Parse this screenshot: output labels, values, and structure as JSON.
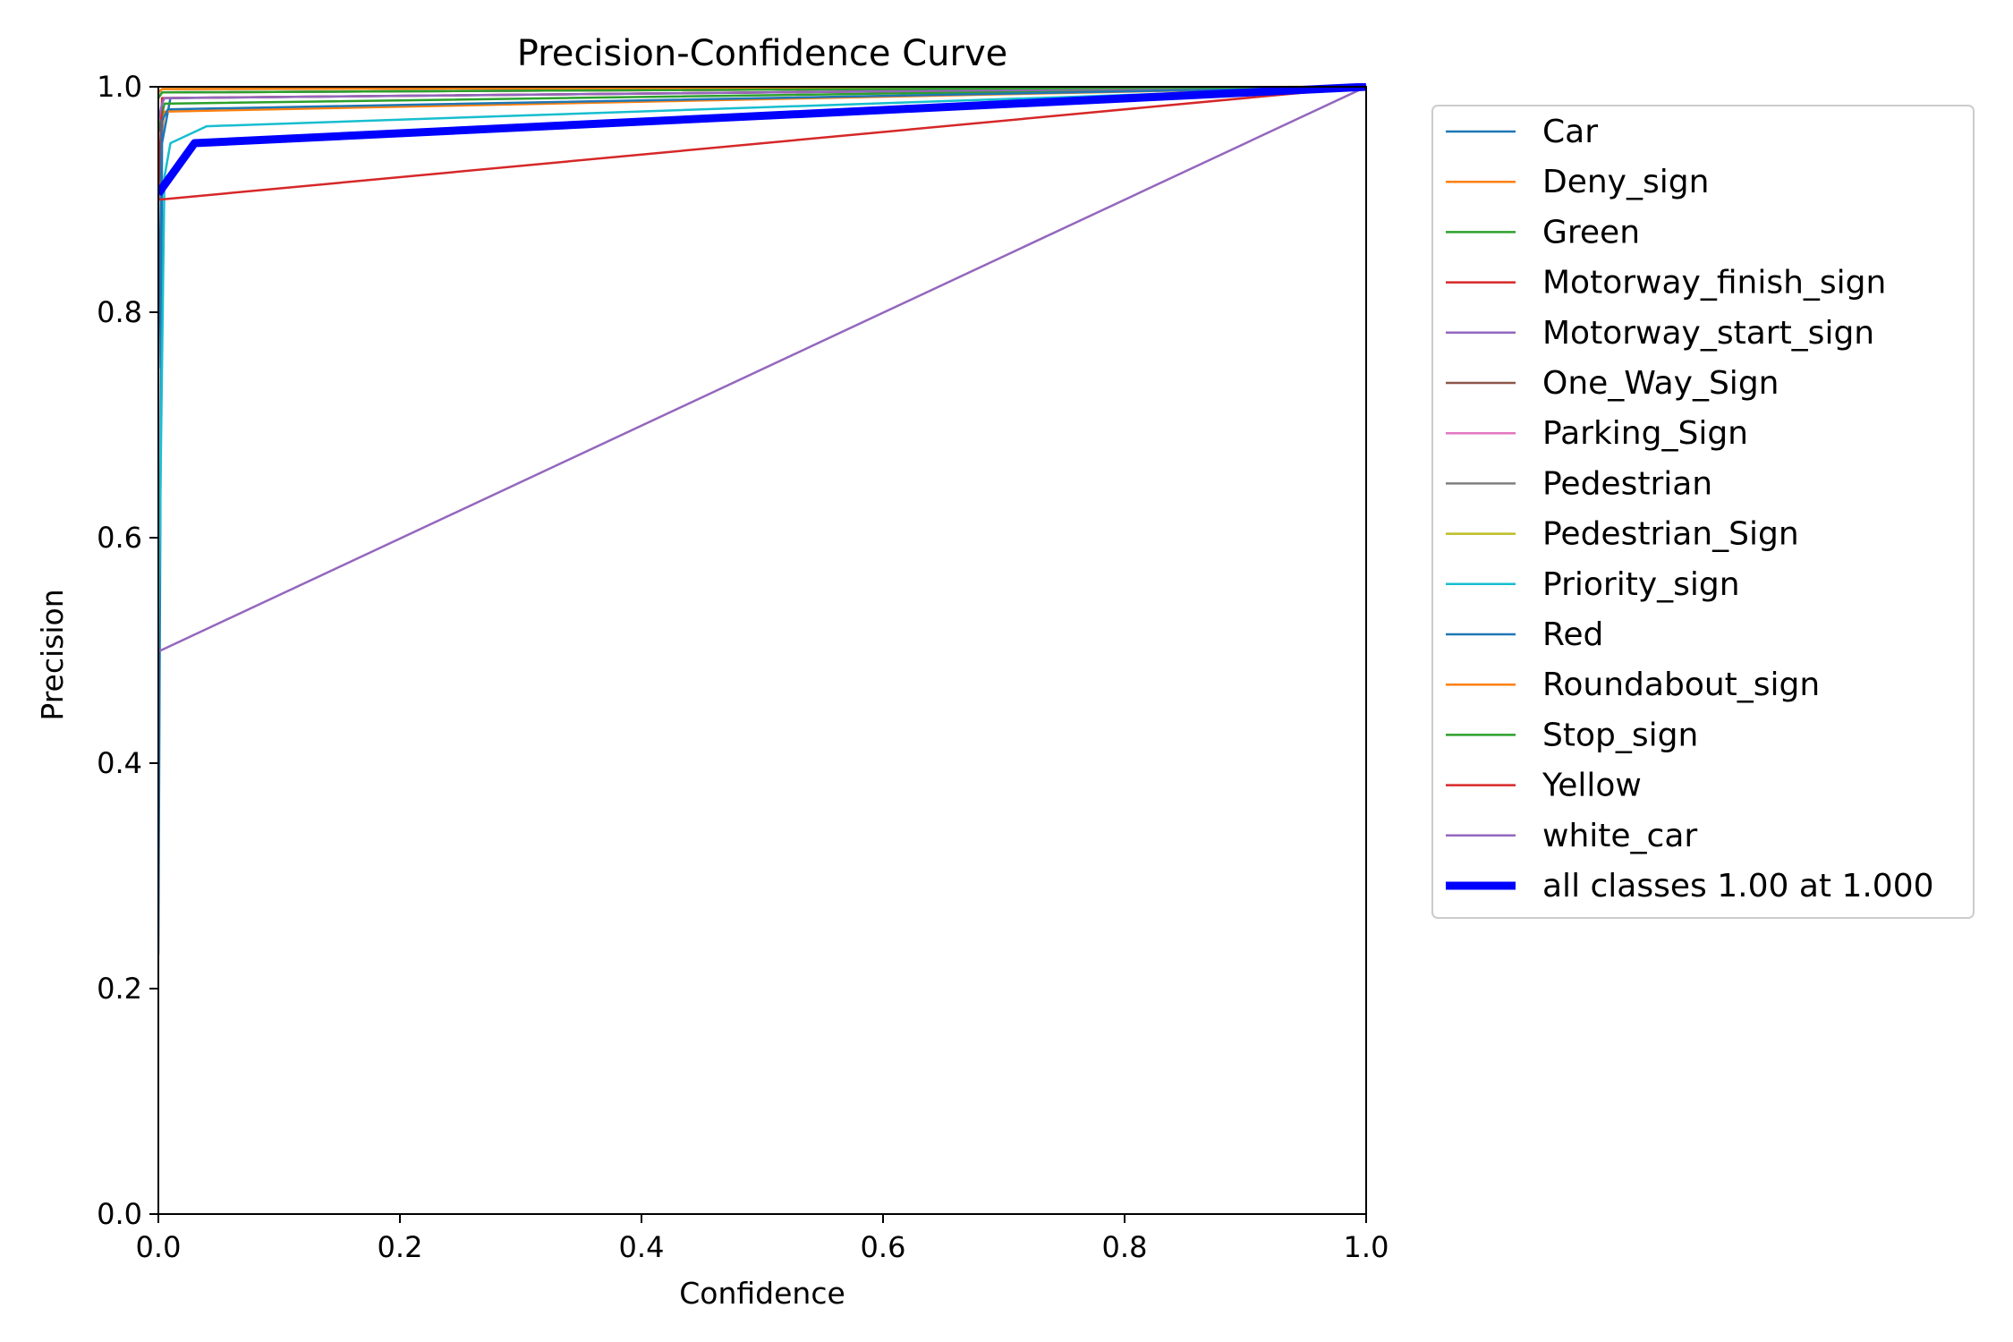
{
  "chart_data": {
    "type": "line",
    "title": "Precision-Confidence Curve",
    "xlabel": "Confidence",
    "ylabel": "Precision",
    "xlim": [
      0,
      1
    ],
    "ylim": [
      0,
      1
    ],
    "xticks": [
      "0.0",
      "0.2",
      "0.4",
      "0.6",
      "0.8",
      "1.0"
    ],
    "yticks": [
      "0.0",
      "0.2",
      "0.4",
      "0.6",
      "0.8",
      "1.0"
    ],
    "grid": false,
    "legend_position": "outside-right",
    "series": [
      {
        "name": "Car",
        "color": "#1f77b4",
        "x": [
          0.0,
          0.003,
          0.01,
          1.0
        ],
        "y": [
          0.23,
          0.95,
          0.99,
          1.0
        ]
      },
      {
        "name": "Deny_sign",
        "color": "#ff7f0e",
        "x": [
          0.0,
          0.003,
          0.005,
          1.0
        ],
        "y": [
          0.94,
          0.96,
          0.978,
          1.0
        ]
      },
      {
        "name": "Green",
        "color": "#2ca02c",
        "x": [
          0.0,
          0.002,
          0.005,
          1.0
        ],
        "y": [
          0.96,
          0.97,
          0.985,
          1.0
        ]
      },
      {
        "name": "Motorway_finish_sign",
        "color": "#d62728",
        "x": [
          0.0,
          0.003,
          1.0
        ],
        "y": [
          0.9,
          0.99,
          1.0
        ]
      },
      {
        "name": "Motorway_start_sign",
        "color": "#9467bd",
        "x": [
          0.0,
          0.003,
          0.005,
          1.0
        ],
        "y": [
          0.97,
          0.985,
          0.99,
          1.0
        ]
      },
      {
        "name": "One_Way_Sign",
        "color": "#8c564b",
        "x": [
          0.0,
          0.003,
          1.0
        ],
        "y": [
          0.99,
          0.995,
          1.0
        ]
      },
      {
        "name": "Parking_Sign",
        "color": "#e377c2",
        "x": [
          0.0,
          0.003,
          1.0
        ],
        "y": [
          0.99,
          0.995,
          1.0
        ]
      },
      {
        "name": "Pedestrian",
        "color": "#7f7f7f",
        "x": [
          0.0,
          0.003,
          1.0
        ],
        "y": [
          0.99,
          0.995,
          1.0
        ]
      },
      {
        "name": "Pedestrian_Sign",
        "color": "#bcbd22",
        "x": [
          0.0,
          0.003,
          1.0
        ],
        "y": [
          0.995,
          0.998,
          1.0
        ]
      },
      {
        "name": "Priority_sign",
        "color": "#17becf",
        "x": [
          0.0,
          0.005,
          0.01,
          0.04,
          1.0
        ],
        "y": [
          0.5,
          0.92,
          0.95,
          0.965,
          1.0
        ]
      },
      {
        "name": "Red",
        "color": "#1f77b4",
        "x": [
          0.0,
          0.003,
          0.008,
          1.0
        ],
        "y": [
          0.75,
          0.97,
          0.98,
          1.0
        ]
      },
      {
        "name": "Roundabout_sign",
        "color": "#ff7f0e",
        "x": [
          0.0,
          0.003,
          1.0
        ],
        "y": [
          0.995,
          0.998,
          1.0
        ]
      },
      {
        "name": "Stop_sign",
        "color": "#2ca02c",
        "x": [
          0.0,
          0.003,
          1.0
        ],
        "y": [
          0.99,
          0.995,
          1.0
        ]
      },
      {
        "name": "Yellow",
        "color": "#d62728",
        "x": [
          0.0,
          0.002,
          1.0
        ],
        "y": [
          0.9,
          0.9,
          1.0
        ]
      },
      {
        "name": "white_car",
        "color": "#9467bd",
        "x": [
          0.0,
          0.002,
          1.0
        ],
        "y": [
          0.5,
          0.5,
          1.0
        ]
      },
      {
        "name": "all classes 1.00 at 1.000",
        "color": "#0000ff",
        "bold": true,
        "x": [
          0.0,
          0.003,
          0.03,
          1.0
        ],
        "y": [
          0.905,
          0.91,
          0.95,
          1.0
        ]
      }
    ]
  }
}
